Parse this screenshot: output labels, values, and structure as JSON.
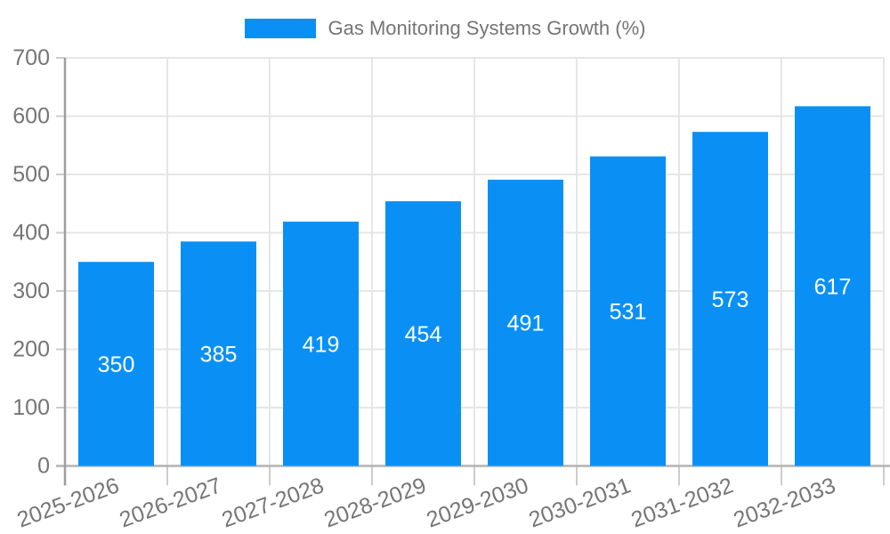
{
  "legend": {
    "label": "Gas Monitoring Systems Growth (%)"
  },
  "chart_data": {
    "type": "bar",
    "title": "Gas Monitoring Systems Growth (%)",
    "categories": [
      "2025-2026",
      "2026-2027",
      "2027-2028",
      "2028-2029",
      "2029-2030",
      "2030-2031",
      "2031-2032",
      "2032-2033"
    ],
    "series": [
      {
        "name": "Gas Monitoring Systems Growth (%)",
        "color": "#0a90f5",
        "values": [
          350,
          385,
          419,
          454,
          491,
          531,
          573,
          617
        ]
      }
    ],
    "xlabel": "",
    "ylabel": "",
    "ylim": [
      0,
      700
    ],
    "yticks": [
      0,
      100,
      200,
      300,
      400,
      500,
      600,
      700
    ],
    "grid": true,
    "legend_position": "top",
    "value_label_position": "inside-center",
    "x_tick_rotation_deg": -20,
    "colors": {
      "bar": "#0a90f5",
      "value_label": "#ffffff",
      "axis_text": "#757575",
      "gridline": "#e6e6e6",
      "tick": "#cccccc",
      "y_axis_line": "#9e9e9e",
      "x_axis_line": "#b3b3b3",
      "background": "#ffffff"
    }
  }
}
